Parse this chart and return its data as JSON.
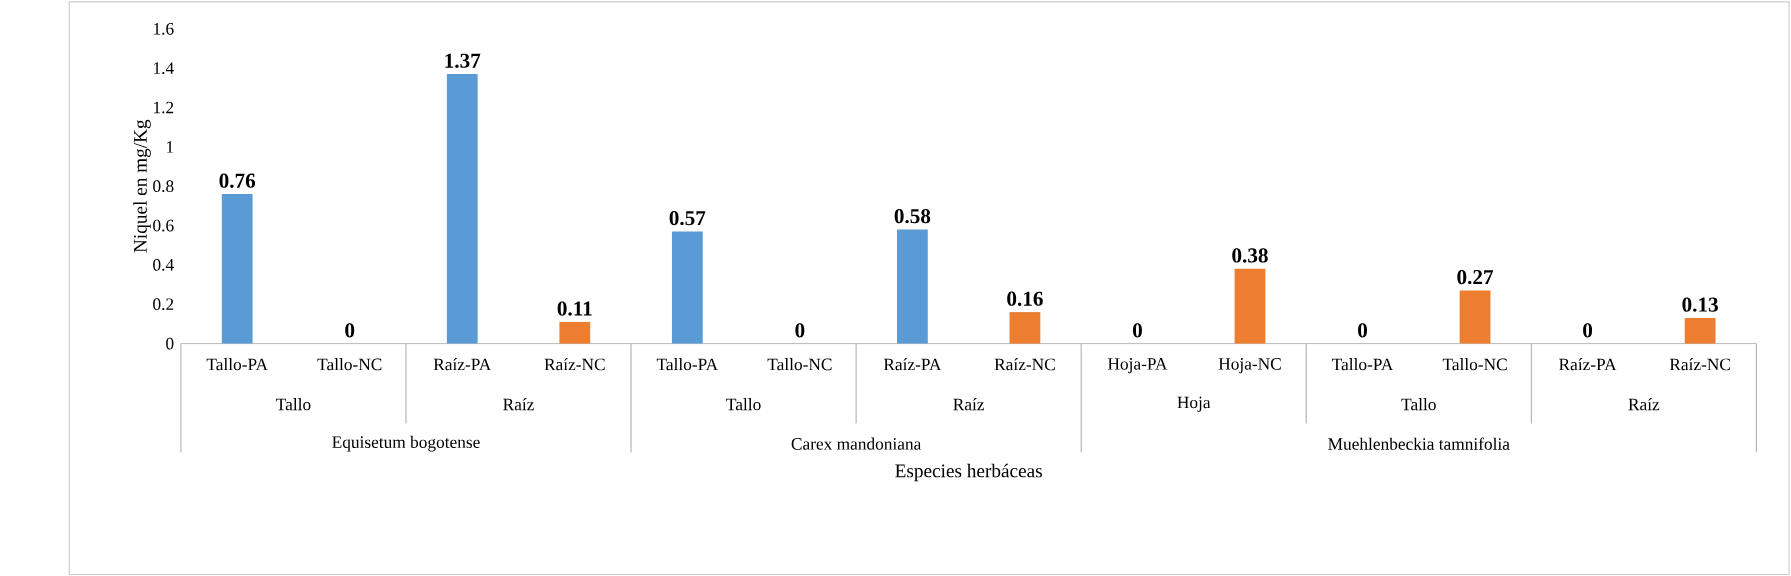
{
  "chart_data": {
    "type": "bar",
    "categories": [
      "Tallo-PA",
      "Tallo-NC",
      "Raíz-PA",
      "Raíz-NC",
      "Tallo-PA",
      "Tallo-NC",
      "Raíz-PA",
      "Raíz-NC",
      "Hoja-PA",
      "Hoja-NC",
      "Tallo-PA",
      "Tallo-NC",
      "Raíz-PA",
      "Raíz-NC"
    ],
    "values": [
      0.76,
      0,
      1.37,
      0.11,
      0.57,
      0,
      0.58,
      0.16,
      0,
      0.38,
      0,
      0.27,
      0,
      0.13
    ],
    "colors": [
      "#5b9bd5",
      "#ed7d31",
      "#5b9bd5",
      "#ed7d31",
      "#5b9bd5",
      "#ed7d31",
      "#5b9bd5",
      "#ed7d31",
      "#5b9bd5",
      "#ed7d31",
      "#5b9bd5",
      "#ed7d31",
      "#5b9bd5",
      "#ed7d31"
    ],
    "data_labels": true,
    "ylim": [
      0,
      1.6
    ],
    "yticks": [
      0,
      0.2,
      0.4,
      0.6,
      0.8,
      1,
      1.2,
      1.4,
      1.6
    ],
    "xlabel": "Especies herbáceas",
    "ylabel": "Niquel en mg/Kg",
    "annotations": [
      "Tallo",
      "Raíz",
      "Tallo",
      "Raíz",
      "Hoja",
      "Tallo",
      "Raíz",
      "Equisetum bogotense",
      "Carex mandoniana",
      "Muehlenbeckia tamnifolia"
    ]
  }
}
